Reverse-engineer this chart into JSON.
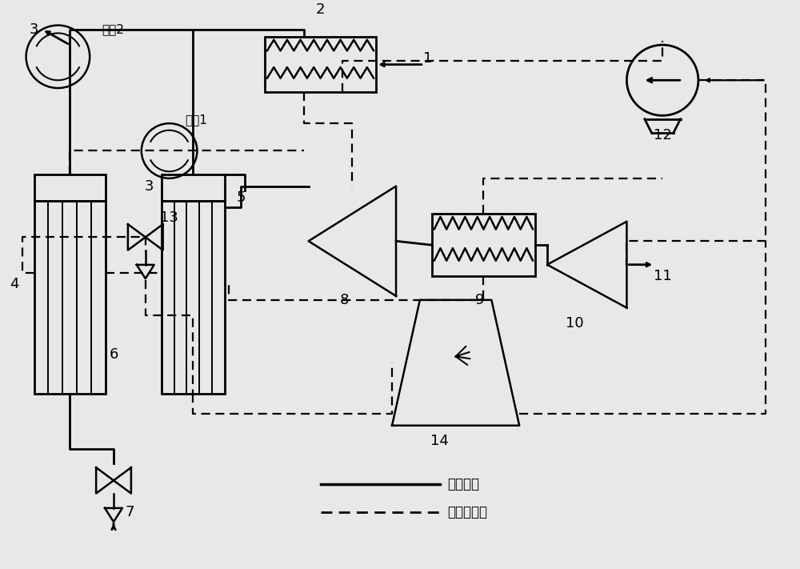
{
  "bg_color": "#e8e8e8",
  "line_color": "#000000",
  "legend_solid": "烟气管路",
  "legend_dashed": "加热水管路"
}
